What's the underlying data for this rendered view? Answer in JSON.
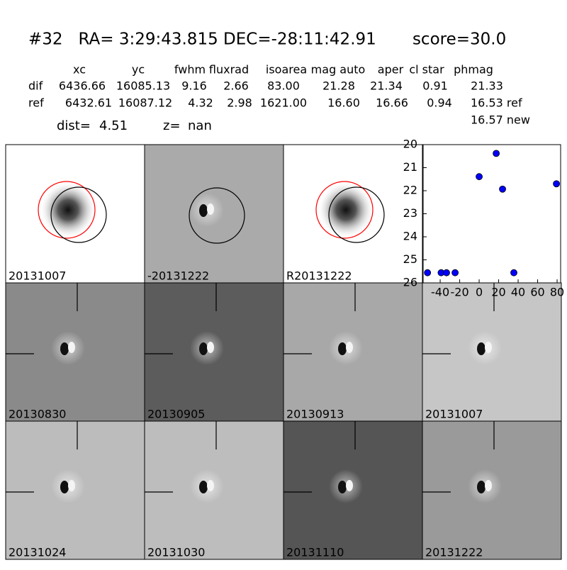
{
  "header": {
    "title": "#32   RA= 3:29:43.815 DEC=-28:11:42.91       score=30.0"
  },
  "table": {
    "columns": [
      "xc",
      "yc",
      "fwhm",
      "fluxrad",
      "isoarea",
      "mag auto",
      "aper",
      "cl star",
      "phmag"
    ],
    "rows": [
      [
        "dif",
        "6436.66",
        "16085.13",
        "9.16",
        "2.66",
        "83.00",
        "21.28",
        "21.34",
        "0.91",
        "21.33"
      ],
      [
        "ref",
        "6432.61",
        "16087.12",
        "4.32",
        "2.98",
        "1621.00",
        "16.60",
        "16.66",
        "0.94",
        "16.53 ref"
      ]
    ],
    "extra": "16.57 new"
  },
  "dist_line": {
    "dist_label": "dist=",
    "dist": "4.51",
    "z_label": "z=",
    "z": "nan"
  },
  "panels": [
    {
      "label": "20131007"
    },
    {
      "label": "-20131222"
    },
    {
      "label": "R20131222"
    },
    {
      "label": "20130830"
    },
    {
      "label": "20130905"
    },
    {
      "label": "20130913"
    },
    {
      "label": "20131007",
      "label_color": "#ff0000"
    },
    {
      "label": "20131024"
    },
    {
      "label": "20131030"
    },
    {
      "label": "20131110"
    },
    {
      "label": "20131222"
    }
  ],
  "chart_data": {
    "type": "scatter",
    "color": "#0000ff",
    "x": [
      -53,
      -39,
      -33.5,
      -24.7,
      0,
      17.5,
      24,
      35.6,
      79.3
    ],
    "values": [
      25.56,
      25.56,
      25.56,
      25.56,
      21.39,
      20.38,
      21.93,
      25.56,
      21.7
    ],
    "xlim": [
      -57.5,
      83.6
    ],
    "xticks": [
      -40,
      -20,
      0,
      20,
      40,
      60,
      80
    ],
    "ylim": [
      20,
      26
    ],
    "yticks": [
      20,
      21,
      22,
      23,
      24,
      25,
      26
    ],
    "y_inverted": true
  }
}
